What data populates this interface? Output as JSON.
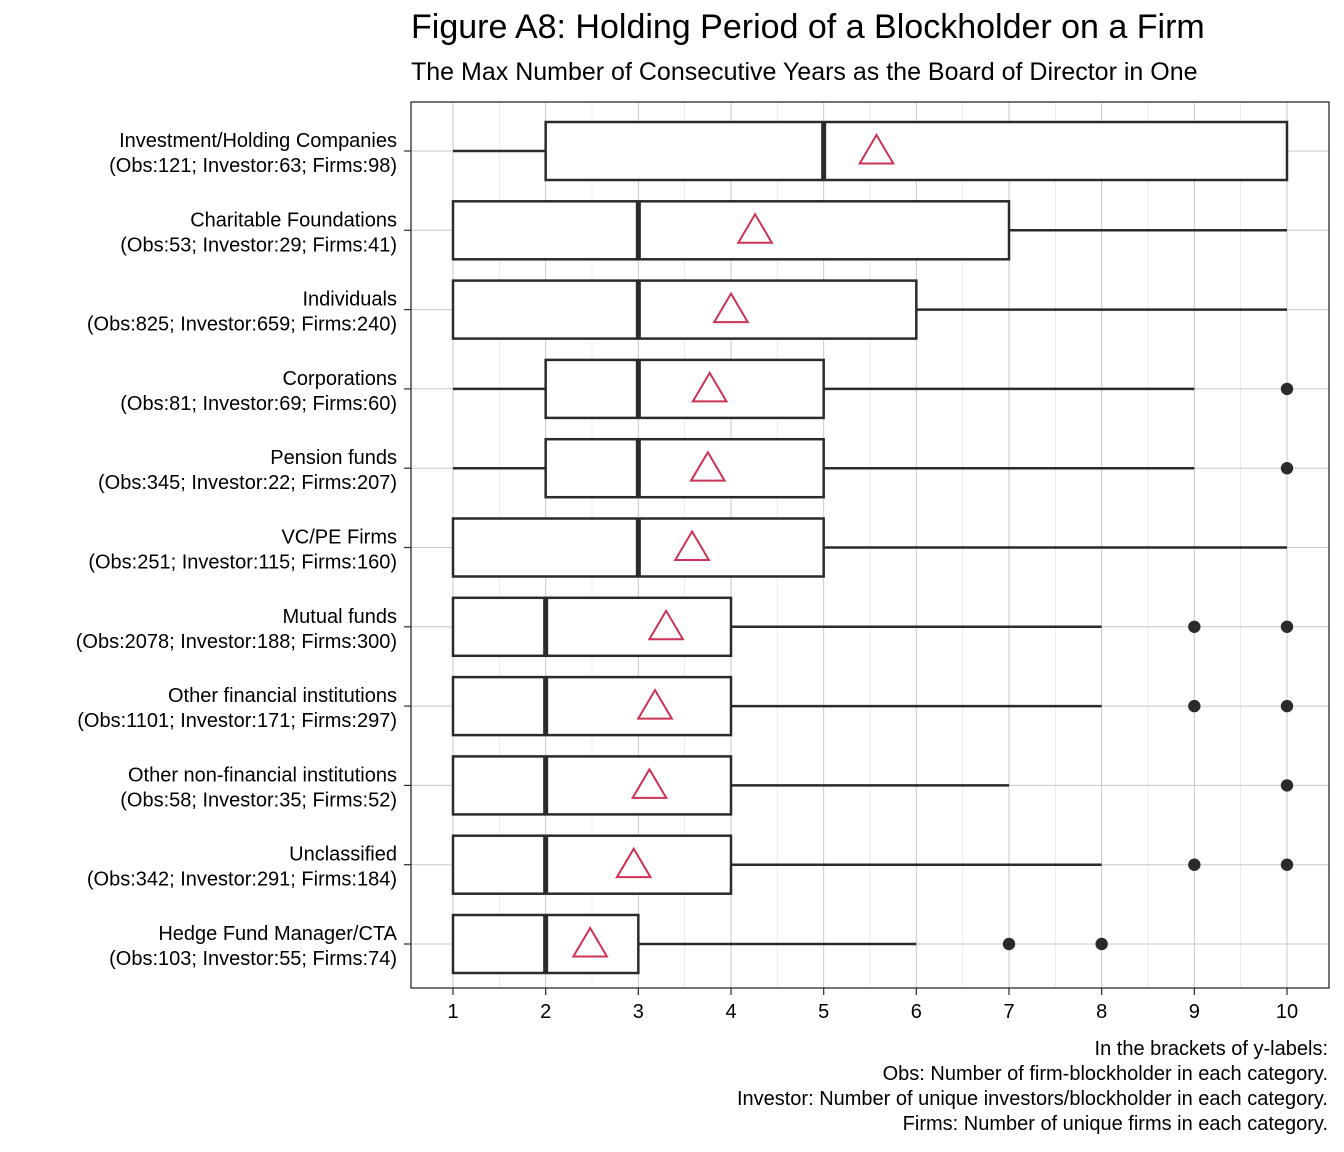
{
  "title": "Figure A8: Holding Period of a Blockholder on a Firm",
  "subtitle": "The Max Number of Consecutive Years as the Board of Director in One",
  "caption": [
    "In the brackets of y-labels:  ",
    "Obs: Number of firm-blockholder in each category.",
    "Investor: Number of unique investors/blockholder in each category.",
    "Firms: Number of unique firms in each category."
  ],
  "colors": {
    "box": "#2b2b2b",
    "mean_marker": "#cc3355",
    "grid": "#d0d0d0",
    "outlier": "#2b2b2b"
  },
  "chart_data": {
    "type": "boxplot",
    "orientation": "horizontal",
    "xlim": [
      0.55,
      10.5
    ],
    "x_ticks": [
      1,
      2,
      3,
      4,
      5,
      6,
      7,
      8,
      9,
      10
    ],
    "grid": true,
    "mean_marker": "triangle",
    "categories": [
      {
        "label": "Investment/Holding Companies",
        "sublabel": "(Obs:121; Investor:63; Firms:98)",
        "min": 1,
        "q1": 2,
        "median": 5,
        "q3": 10,
        "max": 10,
        "mean": 5.57,
        "outliers": []
      },
      {
        "label": "Charitable Foundations",
        "sublabel": "(Obs:53; Investor:29; Firms:41)",
        "min": 1,
        "q1": 1,
        "median": 3,
        "q3": 7,
        "max": 10,
        "mean": 4.26,
        "outliers": []
      },
      {
        "label": "Individuals",
        "sublabel": "(Obs:825; Investor:659; Firms:240)",
        "min": 1,
        "q1": 1,
        "median": 3,
        "q3": 6,
        "max": 10,
        "mean": 4.0,
        "outliers": []
      },
      {
        "label": "Corporations",
        "sublabel": "(Obs:81; Investor:69; Firms:60)",
        "min": 1,
        "q1": 2,
        "median": 3,
        "q3": 5,
        "max": 9,
        "mean": 3.77,
        "outliers": [
          10
        ]
      },
      {
        "label": "Pension funds",
        "sublabel": "(Obs:345; Investor:22; Firms:207)",
        "min": 1,
        "q1": 2,
        "median": 3,
        "q3": 5,
        "max": 9,
        "mean": 3.75,
        "outliers": [
          10
        ]
      },
      {
        "label": "VC/PE Firms",
        "sublabel": "(Obs:251; Investor:115; Firms:160)",
        "min": 1,
        "q1": 1,
        "median": 3,
        "q3": 5,
        "max": 10,
        "mean": 3.58,
        "outliers": []
      },
      {
        "label": "Mutual funds",
        "sublabel": "(Obs:2078; Investor:188; Firms:300)",
        "min": 1,
        "q1": 1,
        "median": 2,
        "q3": 4,
        "max": 8,
        "mean": 3.3,
        "outliers": [
          9,
          10
        ]
      },
      {
        "label": "Other financial institutions",
        "sublabel": "(Obs:1101; Investor:171; Firms:297)",
        "min": 1,
        "q1": 1,
        "median": 2,
        "q3": 4,
        "max": 8,
        "mean": 3.18,
        "outliers": [
          9,
          10
        ]
      },
      {
        "label": "Other non-financial institutions",
        "sublabel": "(Obs:58; Investor:35; Firms:52)",
        "min": 1,
        "q1": 1,
        "median": 2,
        "q3": 4,
        "max": 7,
        "mean": 3.12,
        "outliers": [
          10
        ]
      },
      {
        "label": "Unclassified",
        "sublabel": "(Obs:342; Investor:291; Firms:184)",
        "min": 1,
        "q1": 1,
        "median": 2,
        "q3": 4,
        "max": 8,
        "mean": 2.95,
        "outliers": [
          9,
          10
        ]
      },
      {
        "label": "Hedge Fund Manager/CTA",
        "sublabel": "(Obs:103; Investor:55; Firms:74)",
        "min": 1,
        "q1": 1,
        "median": 2,
        "q3": 3,
        "max": 6,
        "mean": 2.48,
        "outliers": [
          7,
          8
        ]
      }
    ]
  }
}
